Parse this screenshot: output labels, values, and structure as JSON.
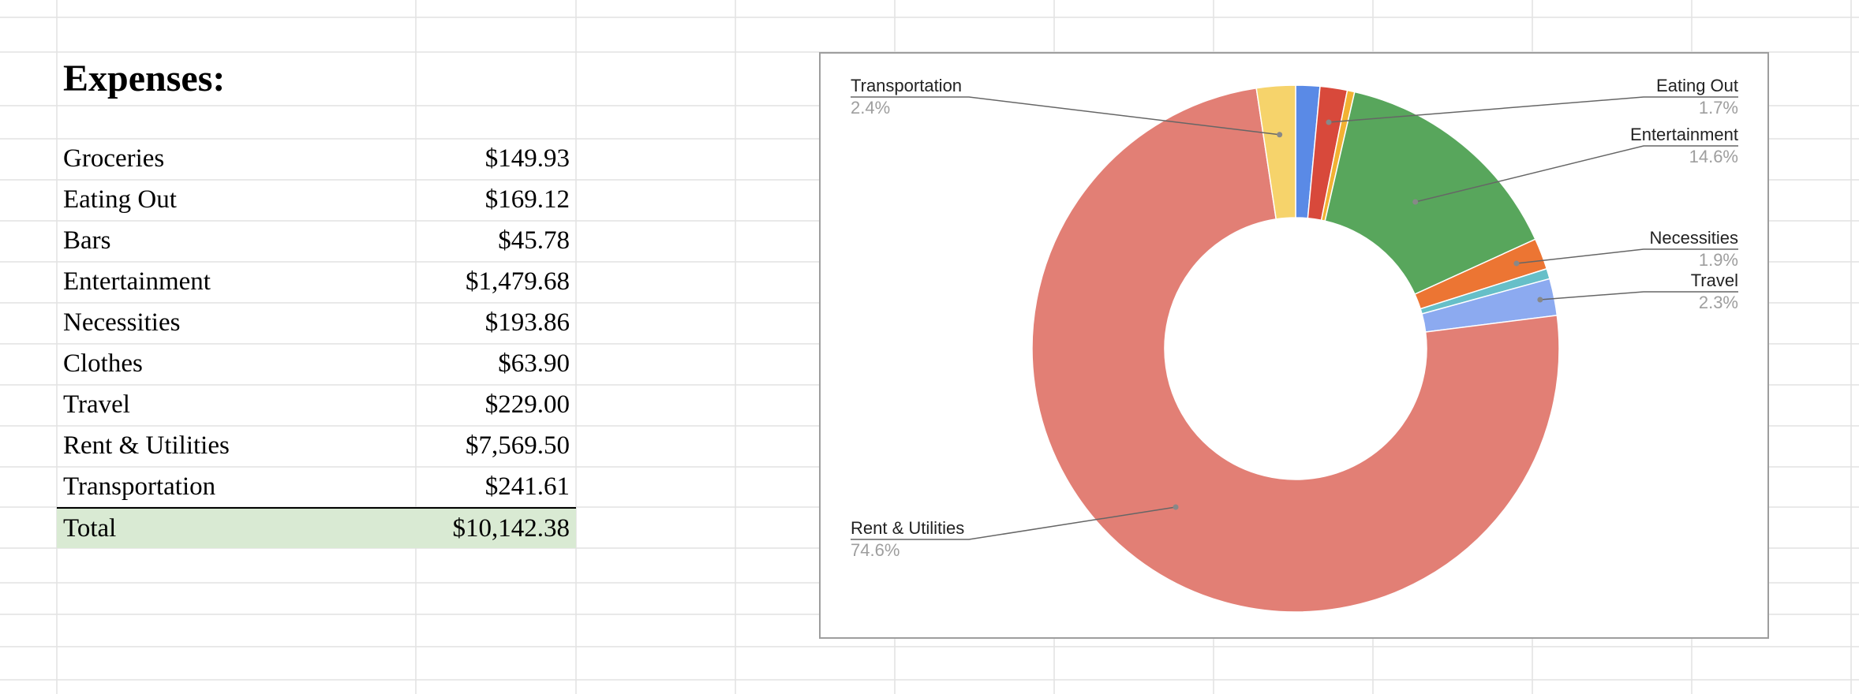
{
  "sheet": {
    "title": "Expenses:",
    "rows": [
      {
        "label": "Groceries",
        "value": "$149.93"
      },
      {
        "label": "Eating Out",
        "value": "$169.12"
      },
      {
        "label": "Bars",
        "value": "$45.78"
      },
      {
        "label": "Entertainment",
        "value": "$1,479.68"
      },
      {
        "label": "Necessities",
        "value": "$193.86"
      },
      {
        "label": "Clothes",
        "value": "$63.90"
      },
      {
        "label": "Travel",
        "value": "$229.00"
      },
      {
        "label": "Rent & Utilities",
        "value": "$7,569.50"
      },
      {
        "label": "Transportation",
        "value": "$241.61"
      }
    ],
    "total": {
      "label": "Total",
      "value": "$10,142.38"
    },
    "colors": {
      "grid": "#e2e2e2",
      "total_fill": "#d9ead3"
    }
  },
  "chart_data": {
    "type": "pie",
    "donut": true,
    "legend": "none",
    "slices": [
      {
        "label": "Groceries",
        "value": 149.93,
        "color": "#5a8ae6"
      },
      {
        "label": "Eating Out",
        "value": 169.12,
        "color": "#d8493b",
        "pct_label": "1.7%"
      },
      {
        "label": "Bars",
        "value": 45.78,
        "color": "#f2b233"
      },
      {
        "label": "Entertainment",
        "value": 1479.68,
        "color": "#58a65c",
        "pct_label": "14.6%"
      },
      {
        "label": "Necessities",
        "value": 193.86,
        "color": "#ec7533",
        "pct_label": "1.9%"
      },
      {
        "label": "Clothes",
        "value": 63.9,
        "color": "#66bfc8"
      },
      {
        "label": "Travel",
        "value": 229.0,
        "color": "#8caaf0",
        "pct_label": "2.3%"
      },
      {
        "label": "Rent & Utilities",
        "value": 7569.5,
        "color": "#e27f75",
        "pct_label": "74.6%"
      },
      {
        "label": "Transportation",
        "value": 241.61,
        "color": "#f6d36b",
        "pct_label": "2.4%"
      }
    ]
  }
}
